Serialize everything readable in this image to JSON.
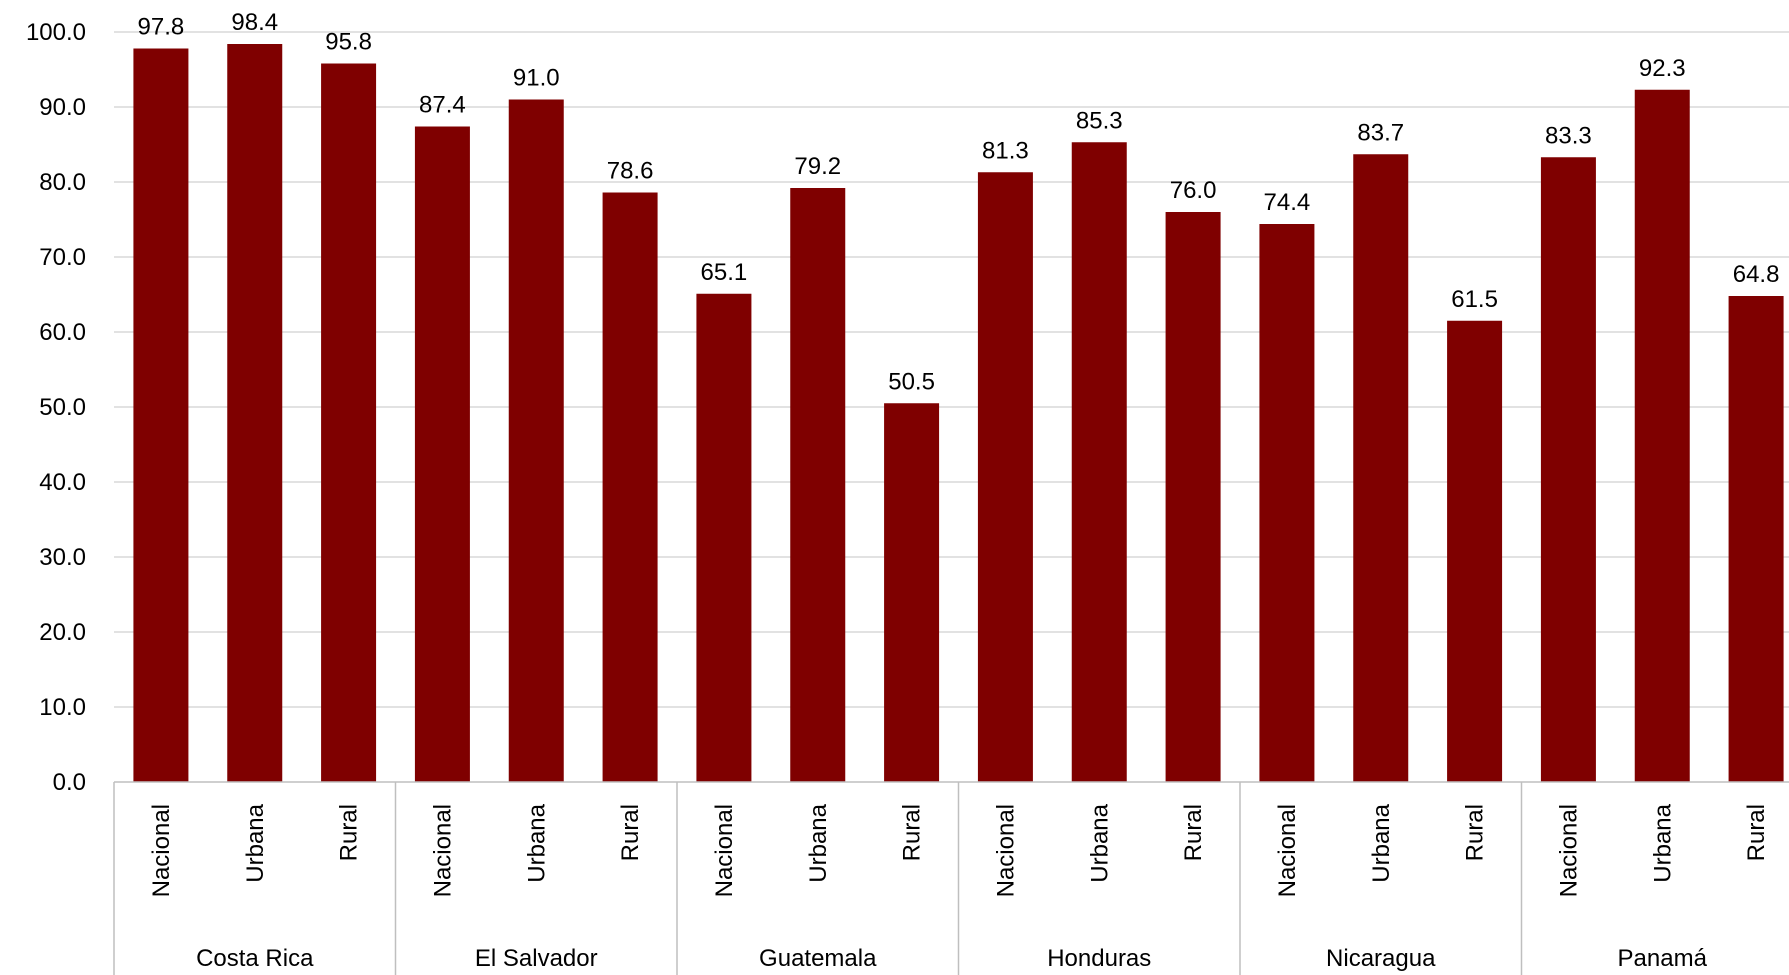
{
  "chart_data": {
    "type": "bar",
    "title": "",
    "xlabel": "",
    "ylabel": "",
    "ylim": [
      0,
      100
    ],
    "yticks": [
      "0.0",
      "10.0",
      "20.0",
      "30.0",
      "40.0",
      "50.0",
      "60.0",
      "70.0",
      "80.0",
      "90.0",
      "100.0"
    ],
    "grid": true,
    "legend": "none",
    "bar_color": "#7f0000",
    "groups": [
      {
        "name": "Costa Rica",
        "categories": [
          "Nacional",
          "Urbana",
          "Rural"
        ],
        "values": [
          97.8,
          98.4,
          95.8
        ],
        "labels": [
          "97.8",
          "98.4",
          "95.8"
        ]
      },
      {
        "name": "El Salvador",
        "categories": [
          "Nacional",
          "Urbana",
          "Rural"
        ],
        "values": [
          87.4,
          91.0,
          78.6
        ],
        "labels": [
          "87.4",
          "91.0",
          "78.6"
        ]
      },
      {
        "name": "Guatemala",
        "categories": [
          "Nacional",
          "Urbana",
          "Rural"
        ],
        "values": [
          65.1,
          79.2,
          50.5
        ],
        "labels": [
          "65.1",
          "79.2",
          "50.5"
        ]
      },
      {
        "name": "Honduras",
        "categories": [
          "Nacional",
          "Urbana",
          "Rural"
        ],
        "values": [
          81.3,
          85.3,
          76.0
        ],
        "labels": [
          "81.3",
          "85.3",
          "76.0"
        ]
      },
      {
        "name": "Nicaragua",
        "categories": [
          "Nacional",
          "Urbana",
          "Rural"
        ],
        "values": [
          74.4,
          83.7,
          61.5
        ],
        "labels": [
          "74.4",
          "83.7",
          "61.5"
        ]
      },
      {
        "name": "Panamá",
        "categories": [
          "Nacional",
          "Urbana",
          "Rural"
        ],
        "values": [
          83.3,
          92.3,
          64.8
        ],
        "labels": [
          "83.3",
          "92.3",
          "64.8"
        ]
      }
    ]
  }
}
